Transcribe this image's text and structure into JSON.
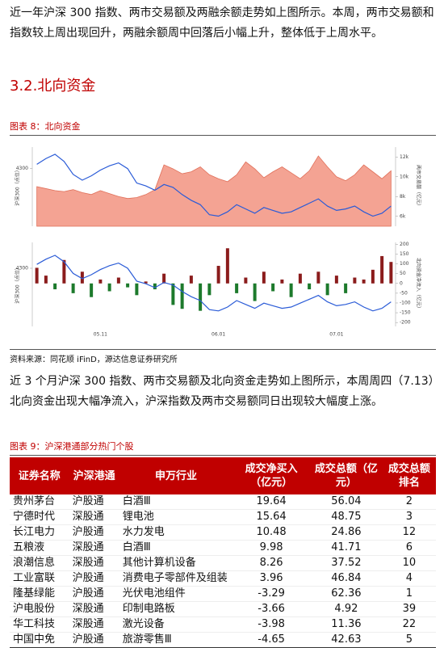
{
  "paragraph1": "近一年沪深 300 指数、两市交易额及两融余额走势如上图所示。本周，两市交易额和指数较上周出现回升，两融余额周中回落后小幅上升，整体低于上周水平。",
  "section_title": "3.2.北向资金",
  "figure8": {
    "caption": "图表 8：北向资金",
    "chart_data": [
      {
        "type": "line-area",
        "y_label": "沪深300（点位）",
        "y2_label": "两市交易额（亿元）",
        "ylim": [
          3900,
          4450
        ],
        "yticks": [
          4300
        ],
        "y2lim": [
          5000,
          13000
        ],
        "y2ticks": [
          {
            "value": 12000,
            "label": "12k"
          },
          {
            "value": 10000,
            "label": "10k"
          },
          {
            "value": 8000,
            "label": "8k"
          },
          {
            "value": 6000,
            "label": "6k"
          }
        ],
        "series": [
          {
            "type": "area",
            "axis": "y2",
            "color": "#f4a393",
            "values": [
              9000,
              8800,
              8600,
              8500,
              8700,
              8400,
              8200,
              8600,
              8300,
              8000,
              7800,
              7900,
              8200,
              8700,
              11200,
              10800,
              10300,
              10500,
              11000,
              10200,
              9800,
              9500,
              10200,
              11500,
              10800,
              9900,
              10500,
              11000,
              10400,
              9800,
              10600,
              12100,
              11000,
              10000,
              9600,
              10200,
              11200,
              10500,
              9800,
              10600
            ]
          },
          {
            "type": "line",
            "axis": "y",
            "color": "#2a5bd7",
            "values": [
              4330,
              4370,
              4400,
              4350,
              4260,
              4220,
              4250,
              4290,
              4320,
              4340,
              4300,
              4200,
              4180,
              4150,
              4190,
              4170,
              4120,
              4080,
              4050,
              3980,
              3970,
              4000,
              4050,
              4020,
              3990,
              4030,
              4010,
              3990,
              4000,
              4030,
              4060,
              4090,
              4040,
              4010,
              4020,
              4040,
              4000,
              3970,
              3990,
              4040
            ]
          }
        ]
      },
      {
        "type": "line-bar",
        "y_label": "沪深300（点位）",
        "y2_label": "北向资金净流入（亿元）",
        "ylim": [
          3850,
          4500
        ],
        "yticks": [
          4300
        ],
        "y2lim": [
          -220,
          210
        ],
        "y2ticks": [
          200,
          150,
          100,
          50,
          0,
          -50,
          -100,
          -150,
          -200
        ],
        "categories": [
          null,
          null,
          null,
          null,
          null,
          null,
          null,
          "05.11",
          null,
          null,
          null,
          null,
          null,
          null,
          null,
          null,
          null,
          null,
          null,
          null,
          "06.01",
          null,
          null,
          null,
          null,
          null,
          null,
          null,
          null,
          null,
          null,
          null,
          null,
          "07.01",
          null,
          null,
          null,
          null,
          null,
          null
        ],
        "series": [
          {
            "type": "bar",
            "axis": "y2",
            "color": "#8b1c1c",
            "negative_color": "#1d7a2c",
            "values": [
              80,
              40,
              -30,
              120,
              -50,
              60,
              -70,
              20,
              -40,
              30,
              -20,
              -60,
              10,
              -30,
              50,
              -110,
              -130,
              40,
              -140,
              -60,
              90,
              180,
              -50,
              30,
              -90,
              60,
              -40,
              20,
              -70,
              50,
              -30,
              60,
              -60,
              40,
              -50,
              30,
              20,
              70,
              140,
              110
            ]
          },
          {
            "type": "line",
            "axis": "y",
            "color": "#2a5bd7",
            "values": [
              4330,
              4370,
              4400,
              4350,
              4260,
              4220,
              4250,
              4290,
              4320,
              4340,
              4300,
              4200,
              4180,
              4150,
              4190,
              4170,
              4120,
              4080,
              4050,
              3980,
              3970,
              4000,
              4050,
              4020,
              3990,
              4030,
              4010,
              3990,
              4000,
              4030,
              4060,
              4090,
              4040,
              4010,
              4020,
              4040,
              4000,
              3970,
              3990,
              4040
            ]
          }
        ]
      }
    ],
    "source": "资料来源：同花顺 iFinD，源达信息证券研究所"
  },
  "paragraph2": "近 3 个月沪深 300 指数、两市交易额及北向资金走势如上图所示，本周周四（7.13）北向资金出现大幅净流入，沪深指数及两市交易额同日出现较大幅度上涨。",
  "figure9": {
    "caption": "图表 9：沪深港通部分热门个股"
  },
  "table": {
    "header": [
      "证券名称",
      "沪深港通",
      "申万行业",
      "成交净买入（亿元）",
      "成交总额（亿元）",
      "成交总额排名"
    ],
    "rows": [
      [
        "贵州茅台",
        "沪股通",
        "白酒Ⅲ",
        "19.64",
        "56.04",
        "2"
      ],
      [
        "宁德时代",
        "深股通",
        "锂电池",
        "15.64",
        "48.75",
        "3"
      ],
      [
        "长江电力",
        "沪股通",
        "水力发电",
        "10.48",
        "24.86",
        "12"
      ],
      [
        "五粮液",
        "深股通",
        "白酒Ⅲ",
        "9.98",
        "41.71",
        "6"
      ],
      [
        "浪潮信息",
        "深股通",
        "其他计算机设备",
        "8.26",
        "37.52",
        "10"
      ],
      [
        "工业富联",
        "沪股通",
        "消费电子零部件及组装",
        "3.96",
        "46.84",
        "4"
      ],
      [
        "隆基绿能",
        "沪股通",
        "光伏电池组件",
        "-3.29",
        "62.36",
        "1"
      ],
      [
        "沪电股份",
        "深股通",
        "印制电路板",
        "-3.66",
        "4.92",
        "39"
      ],
      [
        "华工科技",
        "深股通",
        "激光设备",
        "-3.98",
        "11.36",
        "22"
      ],
      [
        "中国中免",
        "沪股通",
        "旅游零售Ⅲ",
        "-4.65",
        "42.63",
        "5"
      ]
    ]
  }
}
